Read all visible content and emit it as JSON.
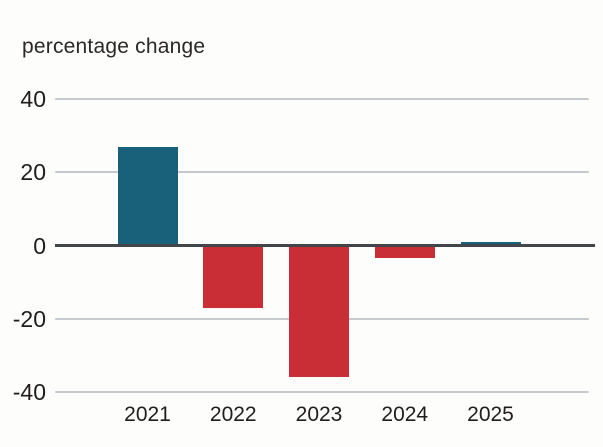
{
  "chart_data": {
    "type": "bar",
    "title": "percentage change",
    "categories": [
      "2021",
      "2022",
      "2023",
      "2024",
      "2025"
    ],
    "values": [
      27,
      -17,
      -36,
      -3.5,
      1
    ],
    "xlabel": "",
    "ylabel": "percentage change",
    "ylim": [
      -45,
      45
    ],
    "yticks": [
      40,
      20,
      0,
      -20,
      -40
    ],
    "ytick_labels": [
      "40",
      "20",
      "0",
      "-20",
      "-40"
    ],
    "grid": true,
    "legend": "none",
    "colors": {
      "positive_bar": "#19607a",
      "negative_bar": "#c92d36",
      "gridline": "#c7cacc",
      "zero_line": "#42464b",
      "text": "#201d1e",
      "background": "#fdfdfb"
    }
  }
}
